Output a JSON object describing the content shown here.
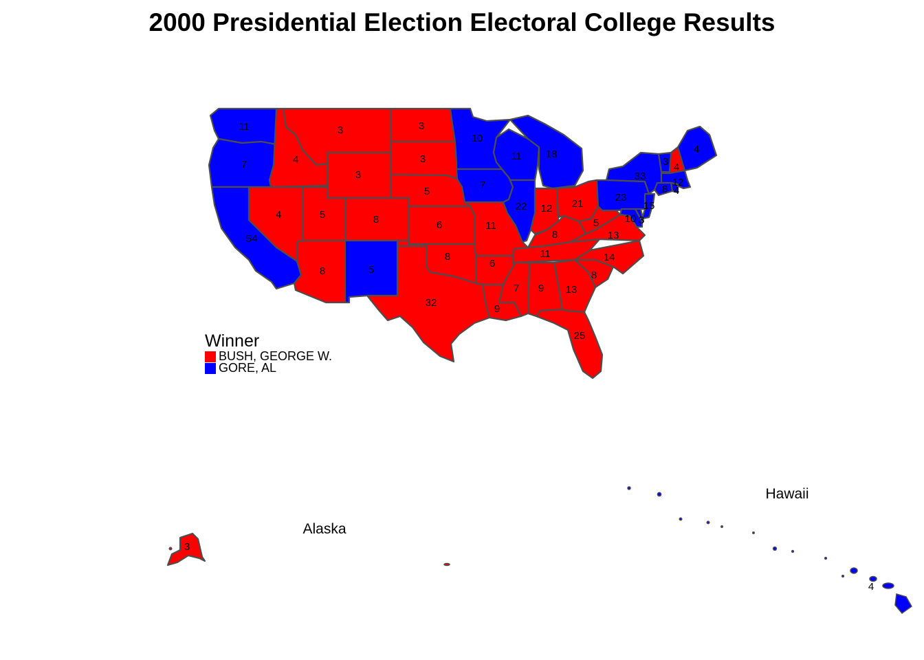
{
  "title": "2000 Presidential Election Electoral College Results",
  "legend": {
    "title": "Winner",
    "items": [
      {
        "label": "BUSH, GEORGE W.",
        "color": "#ff0000"
      },
      {
        "label": "GORE, AL",
        "color": "#0000ff"
      }
    ]
  },
  "colors": {
    "bush": "#ff0000",
    "gore": "#0000ff",
    "border": "#4d4d4d"
  },
  "insets": {
    "alaska": "Alaska",
    "hawaii": "Hawaii"
  },
  "states": {
    "WA": {
      "winner": "gore",
      "ev": "11"
    },
    "OR": {
      "winner": "gore",
      "ev": "7"
    },
    "CA": {
      "winner": "gore",
      "ev": "54"
    },
    "ID": {
      "winner": "bush",
      "ev": "4"
    },
    "NV": {
      "winner": "bush",
      "ev": "4"
    },
    "MT": {
      "winner": "bush",
      "ev": "3"
    },
    "WY": {
      "winner": "bush",
      "ev": "3"
    },
    "UT": {
      "winner": "bush",
      "ev": "5"
    },
    "AZ": {
      "winner": "bush",
      "ev": "8"
    },
    "CO": {
      "winner": "bush",
      "ev": "8"
    },
    "NM": {
      "winner": "gore",
      "ev": "5"
    },
    "ND": {
      "winner": "bush",
      "ev": "3"
    },
    "SD": {
      "winner": "bush",
      "ev": "3"
    },
    "NE": {
      "winner": "bush",
      "ev": "5"
    },
    "KS": {
      "winner": "bush",
      "ev": "6"
    },
    "OK": {
      "winner": "bush",
      "ev": "8"
    },
    "TX": {
      "winner": "bush",
      "ev": "32"
    },
    "MN": {
      "winner": "gore",
      "ev": "10"
    },
    "IA": {
      "winner": "gore",
      "ev": "7"
    },
    "MO": {
      "winner": "bush",
      "ev": "11"
    },
    "AR": {
      "winner": "bush",
      "ev": "6"
    },
    "LA": {
      "winner": "bush",
      "ev": "9"
    },
    "WI": {
      "winner": "gore",
      "ev": "11"
    },
    "IL": {
      "winner": "gore",
      "ev": "22"
    },
    "MI": {
      "winner": "gore",
      "ev": "18"
    },
    "IN": {
      "winner": "bush",
      "ev": "12"
    },
    "OH": {
      "winner": "bush",
      "ev": "21"
    },
    "KY": {
      "winner": "bush",
      "ev": "8"
    },
    "TN": {
      "winner": "bush",
      "ev": "11"
    },
    "MS": {
      "winner": "bush",
      "ev": "7"
    },
    "AL": {
      "winner": "bush",
      "ev": "9"
    },
    "GA": {
      "winner": "bush",
      "ev": "13"
    },
    "FL": {
      "winner": "bush",
      "ev": "25"
    },
    "SC": {
      "winner": "bush",
      "ev": "8"
    },
    "NC": {
      "winner": "bush",
      "ev": "14"
    },
    "VA": {
      "winner": "bush",
      "ev": "13"
    },
    "WV": {
      "winner": "bush",
      "ev": "5"
    },
    "PA": {
      "winner": "gore",
      "ev": "23"
    },
    "NY": {
      "winner": "gore",
      "ev": "33"
    },
    "VT": {
      "winner": "gore",
      "ev": "3"
    },
    "NH": {
      "winner": "bush",
      "ev": "4"
    },
    "ME": {
      "winner": "gore",
      "ev": "4"
    },
    "MA": {
      "winner": "gore",
      "ev": "12"
    },
    "CT": {
      "winner": "gore",
      "ev": "8"
    },
    "RI": {
      "winner": "gore",
      "ev": "4"
    },
    "NJ": {
      "winner": "gore",
      "ev": "15"
    },
    "MD": {
      "winner": "gore",
      "ev": "10"
    },
    "DE": {
      "winner": "gore",
      "ev": "3"
    },
    "AK": {
      "winner": "bush",
      "ev": "3"
    },
    "HI": {
      "winner": "gore",
      "ev": "4"
    }
  }
}
